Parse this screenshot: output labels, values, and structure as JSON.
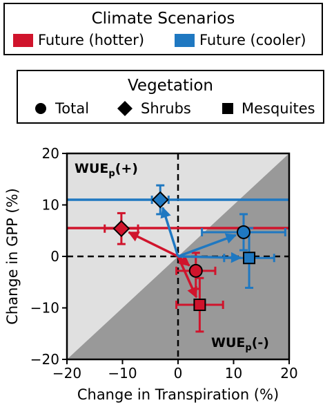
{
  "legend_climate": {
    "title": "Climate Scenarios",
    "entries": [
      {
        "label": "Future (hotter)",
        "color": "#d0142c"
      },
      {
        "label": "Future (cooler)",
        "color": "#1f78c1"
      }
    ]
  },
  "legend_vegetation": {
    "title": "Vegetation",
    "entries": [
      {
        "label": "Total",
        "marker": "circle"
      },
      {
        "label": "Shrubs",
        "marker": "diamond"
      },
      {
        "label": "Mesquites",
        "marker": "square"
      }
    ]
  },
  "chart_data": {
    "type": "scatter",
    "xlabel": "Change in Transpiration (%)",
    "ylabel": "Change in GPP (%)",
    "xlim": [
      -20,
      20
    ],
    "ylim": [
      -20,
      20
    ],
    "xticks": [
      -20,
      -10,
      0,
      10,
      20
    ],
    "yticks": [
      -20,
      -10,
      0,
      10,
      20
    ],
    "annotations": {
      "upper_left": {
        "main": "WUE",
        "sub": "p",
        "suffix": "(+)"
      },
      "lower_right": {
        "main": "WUE",
        "sub": "p",
        "suffix": "(-)"
      }
    },
    "region_colors": {
      "upper": "#e0e0e0",
      "lower": "#999999"
    },
    "series": [
      {
        "name": "Future (hotter)",
        "color": "#d0142c",
        "hline": 5.5,
        "points": [
          {
            "vegetation": "Total",
            "marker": "circle",
            "x": 3.2,
            "y": -2.8,
            "xerr": 3.5,
            "yerr": 3.5
          },
          {
            "vegetation": "Shrubs",
            "marker": "diamond",
            "x": -10.2,
            "y": 5.4,
            "xerr": 3.0,
            "yerr": 3.0
          },
          {
            "vegetation": "Mesquites",
            "marker": "square",
            "x": 3.9,
            "y": -9.4,
            "xerr": 4.2,
            "yerr": 5.2
          }
        ]
      },
      {
        "name": "Future (cooler)",
        "color": "#1f78c1",
        "hline": 11.0,
        "points": [
          {
            "vegetation": "Total",
            "marker": "circle",
            "x": 11.8,
            "y": 4.7,
            "xerr": 7.5,
            "yerr": 3.5
          },
          {
            "vegetation": "Shrubs",
            "marker": "diamond",
            "x": -3.2,
            "y": 11.0,
            "xerr": 1.5,
            "yerr": 2.8
          },
          {
            "vegetation": "Mesquites",
            "marker": "square",
            "x": 12.8,
            "y": -0.3,
            "xerr": 4.5,
            "yerr": 5.8
          }
        ]
      }
    ]
  }
}
